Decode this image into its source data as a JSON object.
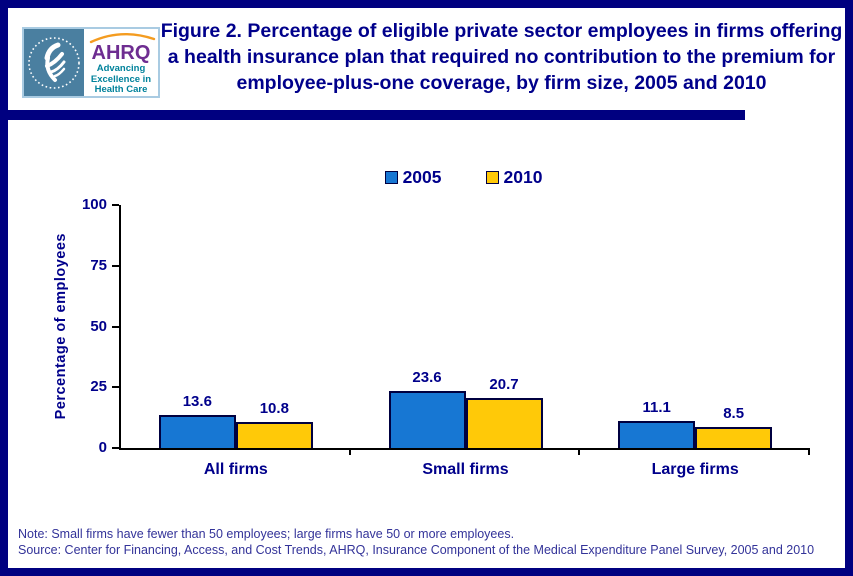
{
  "header": {
    "logo": {
      "acronym": "AHRQ",
      "tagline_lines": [
        "Advancing",
        "Excellence in",
        "Health Care"
      ]
    },
    "title": "Figure 2. Percentage of eligible private sector employees in firms offering a health insurance plan that required no contribution to the premium for employee-plus-one coverage, by firm size, 2005 and 2010"
  },
  "chart_data": {
    "type": "bar",
    "title": "Figure 2. Percentage of eligible private sector employees in firms offering a health insurance plan that required no contribution to the premium for employee-plus-one coverage, by firm size, 2005 and 2010",
    "categories": [
      "All firms",
      "Small firms",
      "Large firms"
    ],
    "series": [
      {
        "name": "2005",
        "color": "#1777D3",
        "values": [
          13.6,
          23.6,
          11.1
        ]
      },
      {
        "name": "2010",
        "color": "#FFC908",
        "values": [
          10.8,
          20.7,
          8.5
        ]
      }
    ],
    "xlabel": "",
    "ylabel": "Percentage of employees",
    "ylim": [
      0,
      100
    ],
    "yticks": [
      0,
      25,
      50,
      75,
      100
    ],
    "legend_position": "top-center",
    "grid": false,
    "value_labels": true
  },
  "footer": {
    "note": "Note: Small firms have fewer than 50 employees; large firms have 50 or more employees.",
    "source": "Source: Center for Financing, Access, and Cost Trends, AHRQ, Insurance Component  of the Medical Expenditure Panel Survey,  2005 and 2010"
  },
  "colors": {
    "outer_border_navy": "#000080",
    "title_text_navy": "#00008B",
    "series_2005_blue": "#1777D3",
    "series_2010_yellow": "#FFC908",
    "bar_border": "#000040",
    "axis_black": "#000000",
    "footer_text": "#333399",
    "hhs_panel_teal": "#4A7FA0",
    "ahrq_purple": "#6E2D91",
    "ahrq_tagline_teal": "#00829B",
    "swoosh_orange": "#F49C20",
    "logo_border_lightblue": "#A9CBE2"
  }
}
